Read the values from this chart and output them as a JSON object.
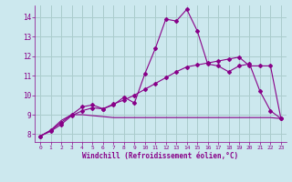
{
  "xlabel": "Windchill (Refroidissement éolien,°C)",
  "bg_color": "#cce8ee",
  "grid_color": "#aacccc",
  "line_color": "#880088",
  "xlim": [
    -0.5,
    23.5
  ],
  "ylim": [
    7.6,
    14.6
  ],
  "xticks": [
    0,
    1,
    2,
    3,
    4,
    5,
    6,
    7,
    8,
    9,
    10,
    11,
    12,
    13,
    14,
    15,
    16,
    17,
    18,
    19,
    20,
    21,
    22,
    23
  ],
  "yticks": [
    8,
    9,
    10,
    11,
    12,
    13,
    14
  ],
  "curve1_x": [
    0,
    1,
    2,
    3,
    4,
    5,
    6,
    7,
    8,
    9,
    10,
    11,
    12,
    13,
    14,
    15,
    16,
    17,
    18,
    19,
    20,
    21,
    22,
    23
  ],
  "curve1_y": [
    7.9,
    8.2,
    8.6,
    9.0,
    9.4,
    9.5,
    9.3,
    9.5,
    9.9,
    9.6,
    11.1,
    12.4,
    13.9,
    13.8,
    14.4,
    13.3,
    11.6,
    11.5,
    11.2,
    11.5,
    11.6,
    10.2,
    9.2,
    8.8
  ],
  "curve2_x": [
    0,
    1,
    2,
    3,
    4,
    5,
    6,
    7,
    8,
    9,
    10,
    11,
    12,
    13,
    14,
    15,
    16,
    17,
    18,
    19,
    20,
    21,
    22,
    23
  ],
  "curve2_y": [
    7.9,
    8.15,
    8.5,
    8.95,
    9.2,
    9.35,
    9.3,
    9.55,
    9.75,
    10.0,
    10.3,
    10.6,
    10.9,
    11.2,
    11.45,
    11.55,
    11.65,
    11.75,
    11.85,
    11.95,
    11.5,
    11.5,
    11.5,
    8.8
  ],
  "curve3_x": [
    0,
    1,
    2,
    3,
    4,
    5,
    6,
    7,
    8,
    9,
    10,
    11,
    12,
    13,
    14,
    15,
    16,
    17,
    18,
    19,
    20,
    21,
    22,
    23
  ],
  "curve3_y": [
    7.9,
    8.2,
    8.7,
    9.0,
    9.0,
    8.95,
    8.9,
    8.85,
    8.85,
    8.85,
    8.85,
    8.85,
    8.85,
    8.85,
    8.85,
    8.85,
    8.85,
    8.85,
    8.85,
    8.85,
    8.85,
    8.85,
    8.85,
    8.8
  ]
}
